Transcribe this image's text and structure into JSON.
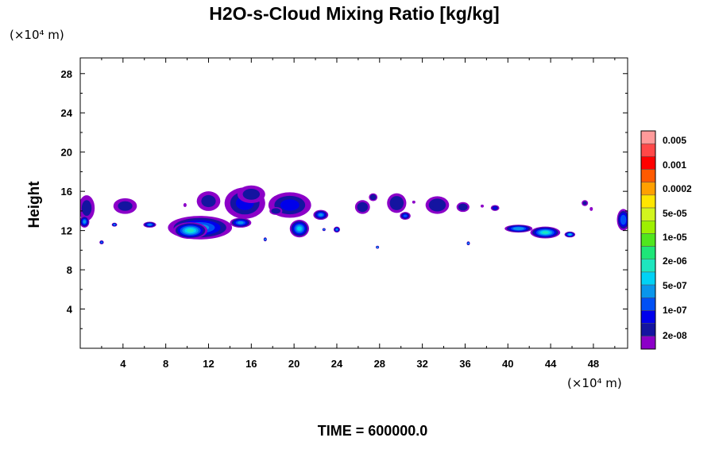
{
  "chart_data": {
    "type": "heatmap",
    "title": "H2O-s-Cloud Mixing Ratio [kg/kg]",
    "ylabel": "Height",
    "xunit": "(×10⁴ m)",
    "yunit": "(×10⁴ m)",
    "time_label": "TIME = 600000.0",
    "xlim": [
      0,
      51.2
    ],
    "ylim": [
      0,
      29.6
    ],
    "x_ticks": [
      4,
      8,
      12,
      16,
      20,
      24,
      28,
      32,
      36,
      40,
      44,
      48
    ],
    "y_ticks": [
      4,
      8,
      12,
      16,
      20,
      24,
      28
    ],
    "colorbar": {
      "labels": [
        "0.005",
        "0.001",
        "0.0002",
        "5e-05",
        "1e-05",
        "2e-06",
        "5e-07",
        "1e-07",
        "2e-08"
      ],
      "colors": [
        "#ff9a9a",
        "#ff4848",
        "#ff0000",
        "#ff5a00",
        "#ffa000",
        "#ffe600",
        "#d2f51e",
        "#9ef000",
        "#50e61e",
        "#1ee678",
        "#1ee6be",
        "#00d2f5",
        "#0a96eb",
        "#0050f5",
        "#0000eb",
        "#1414a0",
        "#8c00c8"
      ]
    },
    "cloud_regions": [
      {
        "x": 0.6,
        "y": 14.3,
        "w": 1.5,
        "h": 2.6,
        "level": 0.7
      },
      {
        "x": 0.4,
        "y": 12.9,
        "w": 0.9,
        "h": 1.2,
        "level": 3.5
      },
      {
        "x": 4.2,
        "y": 14.5,
        "w": 2.2,
        "h": 1.6,
        "level": 0.7
      },
      {
        "x": 3.2,
        "y": 12.6,
        "w": 0.5,
        "h": 0.4,
        "level": 4
      },
      {
        "x": 6.5,
        "y": 12.6,
        "w": 1.2,
        "h": 0.6,
        "level": 4
      },
      {
        "x": 2.0,
        "y": 10.8,
        "w": 0.4,
        "h": 0.4,
        "level": 4
      },
      {
        "x": 11.2,
        "y": 12.3,
        "w": 6.0,
        "h": 2.4,
        "level": 3.5
      },
      {
        "x": 10.3,
        "y": 12.0,
        "w": 3.2,
        "h": 1.7,
        "level": 5.8
      },
      {
        "x": 12.0,
        "y": 15.0,
        "w": 2.2,
        "h": 2.0,
        "level": 0.8
      },
      {
        "x": 15.4,
        "y": 14.8,
        "w": 3.8,
        "h": 3.2,
        "level": 1.5
      },
      {
        "x": 16.0,
        "y": 15.7,
        "w": 2.6,
        "h": 1.8,
        "level": 0.5
      },
      {
        "x": 19.6,
        "y": 14.6,
        "w": 4.0,
        "h": 2.6,
        "level": 1.6
      },
      {
        "x": 20.5,
        "y": 12.2,
        "w": 1.8,
        "h": 1.8,
        "level": 4.5
      },
      {
        "x": 15.0,
        "y": 12.8,
        "w": 2.0,
        "h": 1.0,
        "level": 3.8
      },
      {
        "x": 18.3,
        "y": 14.0,
        "w": 1.2,
        "h": 0.8,
        "level": 1.3
      },
      {
        "x": 22.5,
        "y": 13.6,
        "w": 1.4,
        "h": 1.0,
        "level": 3.5
      },
      {
        "x": 24.0,
        "y": 12.1,
        "w": 0.6,
        "h": 0.6,
        "level": 4
      },
      {
        "x": 26.4,
        "y": 14.4,
        "w": 1.4,
        "h": 1.4,
        "level": 1.3
      },
      {
        "x": 27.4,
        "y": 15.4,
        "w": 0.8,
        "h": 0.8,
        "level": 1.2
      },
      {
        "x": 29.6,
        "y": 14.8,
        "w": 1.8,
        "h": 2.0,
        "level": 1.2
      },
      {
        "x": 30.4,
        "y": 13.5,
        "w": 1.0,
        "h": 0.8,
        "level": 2.5
      },
      {
        "x": 33.4,
        "y": 14.6,
        "w": 2.2,
        "h": 1.8,
        "level": 1.2
      },
      {
        "x": 35.8,
        "y": 14.4,
        "w": 1.2,
        "h": 1.0,
        "level": 1.4
      },
      {
        "x": 38.8,
        "y": 14.3,
        "w": 0.8,
        "h": 0.6,
        "level": 1.5
      },
      {
        "x": 41.0,
        "y": 12.2,
        "w": 2.6,
        "h": 0.8,
        "level": 4.2
      },
      {
        "x": 43.5,
        "y": 11.8,
        "w": 2.8,
        "h": 1.2,
        "level": 5.5
      },
      {
        "x": 45.8,
        "y": 11.6,
        "w": 1.0,
        "h": 0.6,
        "level": 4.5
      },
      {
        "x": 47.2,
        "y": 14.8,
        "w": 0.6,
        "h": 0.6,
        "level": 1.0
      },
      {
        "x": 50.8,
        "y": 13.1,
        "w": 1.2,
        "h": 2.2,
        "level": 3.2
      },
      {
        "x": 17.3,
        "y": 11.1,
        "w": 0.3,
        "h": 0.4,
        "level": 4.5
      },
      {
        "x": 22.8,
        "y": 12.1,
        "w": 0.3,
        "h": 0.3,
        "level": 4.5
      },
      {
        "x": 27.8,
        "y": 10.3,
        "w": 0.3,
        "h": 0.3,
        "level": 6
      },
      {
        "x": 36.3,
        "y": 10.7,
        "w": 0.3,
        "h": 0.4,
        "level": 4.5
      },
      {
        "x": 9.8,
        "y": 14.6,
        "w": 0.3,
        "h": 0.4,
        "level": 0
      },
      {
        "x": 47.8,
        "y": 14.2,
        "w": 0.3,
        "h": 0.4,
        "level": 0
      },
      {
        "x": 31.2,
        "y": 14.9,
        "w": 0.3,
        "h": 0.3,
        "level": 0
      },
      {
        "x": 37.6,
        "y": 14.5,
        "w": 0.3,
        "h": 0.3,
        "level": 0
      }
    ]
  }
}
